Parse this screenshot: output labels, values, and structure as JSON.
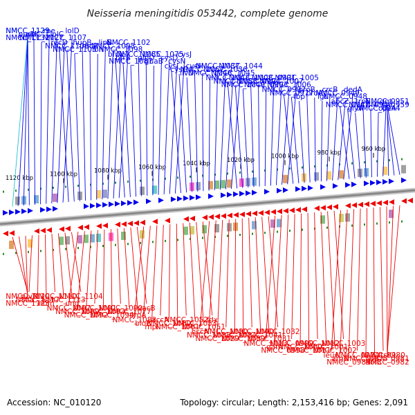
{
  "title": "Neisseria meningitidis 053442, complete genome",
  "footer": {
    "accession": "Accession: NC_010120",
    "summary": "Topology: circular; Length: 2,153,416 bp; Genes: 2,091"
  },
  "colors": {
    "forward": "#0000ee",
    "reverse": "#ee0000",
    "rna": "#22c0d8",
    "backbone": "#888888",
    "tick": "#228b22"
  },
  "ticks": [
    "1120 kbp",
    "1100 kbp",
    "1080 kbp",
    "1060 kbp",
    "1040 kbp",
    "1020 kbp",
    "1000 kbp",
    "980 kbp",
    "960 kbp"
  ],
  "top_labels": [
    "NMCC_1135",
    "purM",
    "NMCC_1132",
    "NMCC_1129",
    "ribC",
    "NMCC_1127",
    "rpe",
    "lolC",
    "NMCC_1107",
    "lolD",
    "recD",
    "NMCC_1106",
    "NMCC_1105",
    "hupB",
    "recR",
    "lon",
    "lipB",
    "NMCC_1095",
    "NMCC_1098",
    "NMCC_1102",
    "bfrA",
    "bfrB",
    "NMCC_1087",
    "NMCC_1085",
    "glnD",
    "guaB",
    "NMCC_1075",
    "cysD",
    "cysN",
    "cysJ",
    "cysI",
    "cysG",
    "ilvD",
    "cysH",
    "NMCC_1067",
    "NMCC_1046",
    "NMCC_1037",
    "NMCC_1036",
    "NMCC_1045",
    "NMCC_1044",
    "NMCC_1043",
    "NMCC_1035",
    "NMCC_1049",
    "NMCC_1008",
    "NMCC_0994",
    "NMCC_0993",
    "NMCC_0991",
    "NMCC_1007",
    "NMCC_1006",
    "NMCC_1005",
    "NMCC_0997",
    "NMCC_0977",
    "fbp",
    "proB",
    "proA",
    "lgt",
    "crcB",
    "NMCC_0949",
    "NMCC_0948",
    "dedA",
    "abcZ",
    "NMCC_0947",
    "glyA",
    "trpE",
    "NMCC_0946",
    "NMCC_0944",
    "ggt",
    "NMCC_0959",
    "opcA",
    "NMCC_0951"
  ],
  "bottom_labels": [
    "NMCC_1120",
    "cca",
    "NMCC_1123",
    "ruvB",
    "NMCC_1117",
    "hom",
    "NMCC_1110",
    "NMCC_1113",
    "ung",
    "NMCC_1104",
    "NMCC_1097",
    "NMCC_1099",
    "NMCC_1092",
    "NMCC_1091",
    "NMCC_1093",
    "NMCC_1094",
    "NMCC_1090",
    "NMCC_1077",
    "typA",
    "vacB",
    "NMCC_1083",
    "bioB",
    "mpl",
    "accA",
    "NMCC_1060",
    "NMCC_1061",
    "NMCC_1052",
    "NMCC_1053",
    "NMCC_1051",
    "fdx",
    "hscA",
    "NMCC_1038",
    "NMCC_1029",
    "NMCC_1030",
    "NMCC_1034",
    "NMCC_1039",
    "NMCC_1040",
    "NMCC_1041",
    "NMCC_1031",
    "NMCC_1032",
    "NMCC_1013",
    "gam",
    "NMCC_0998",
    "NMCC_0999",
    "NMCC_1000",
    "NMCC_1011",
    "NMCC_1012",
    "NMCC_1001",
    "NMCC_1002",
    "NMCC_1003",
    "leuA",
    "argB",
    "NMCC_0989",
    "NMCC_0974",
    "NMCC_0975",
    "folB",
    "NMCC_0980",
    "NMCC_0981",
    "NMCC_0982",
    "ftsK1"
  ]
}
